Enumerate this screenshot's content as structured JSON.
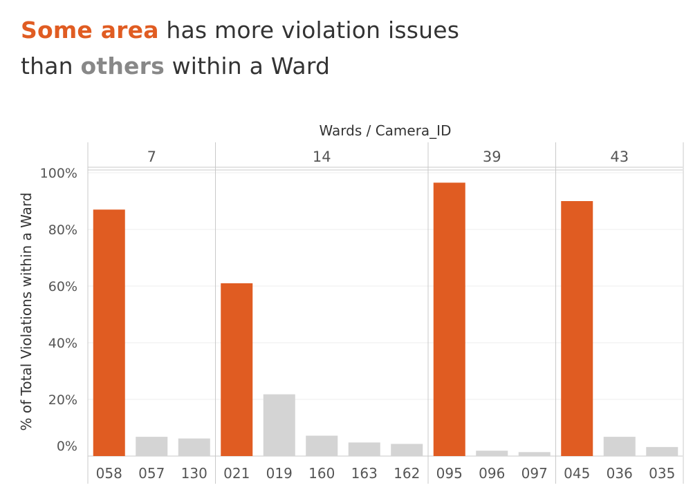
{
  "title": {
    "line1_highlight": "Some area",
    "line1_rest": " has more violation issues",
    "line2_prefix": "than ",
    "line2_highlight": "others",
    "line2_rest": " within a Ward"
  },
  "colors": {
    "highlight": "#e05c22",
    "muted": "#d4d4d4",
    "title_text": "#333333",
    "title_gray": "#888888",
    "axis_text": "#555555",
    "grid": "#eeeeee",
    "divider": "#c8c8c8"
  },
  "chart_data": {
    "type": "bar",
    "title": "",
    "header_label": "Wards / Camera_ID",
    "ylabel": "% of Total Violations within a Ward",
    "ylim": [
      0,
      100
    ],
    "yticks": [
      0,
      20,
      40,
      60,
      80,
      100
    ],
    "ytick_labels": [
      "0%",
      "20%",
      "40%",
      "60%",
      "80%",
      "100%"
    ],
    "grid": true,
    "groups": [
      {
        "ward": "7",
        "bars": [
          {
            "camera_id": "058",
            "value": 87.0,
            "highlight": true
          },
          {
            "camera_id": "057",
            "value": 6.8,
            "highlight": false
          },
          {
            "camera_id": "130",
            "value": 6.2,
            "highlight": false
          }
        ]
      },
      {
        "ward": "14",
        "bars": [
          {
            "camera_id": "021",
            "value": 61.0,
            "highlight": true
          },
          {
            "camera_id": "019",
            "value": 21.8,
            "highlight": false
          },
          {
            "camera_id": "160",
            "value": 7.2,
            "highlight": false
          },
          {
            "camera_id": "163",
            "value": 4.8,
            "highlight": false
          },
          {
            "camera_id": "162",
            "value": 4.3,
            "highlight": false
          }
        ]
      },
      {
        "ward": "39",
        "bars": [
          {
            "camera_id": "095",
            "value": 96.5,
            "highlight": true
          },
          {
            "camera_id": "096",
            "value": 1.9,
            "highlight": false
          },
          {
            "camera_id": "097",
            "value": 1.4,
            "highlight": false
          }
        ]
      },
      {
        "ward": "43",
        "bars": [
          {
            "camera_id": "045",
            "value": 90.0,
            "highlight": true
          },
          {
            "camera_id": "036",
            "value": 6.8,
            "highlight": false
          },
          {
            "camera_id": "035",
            "value": 3.2,
            "highlight": false
          }
        ]
      }
    ]
  }
}
